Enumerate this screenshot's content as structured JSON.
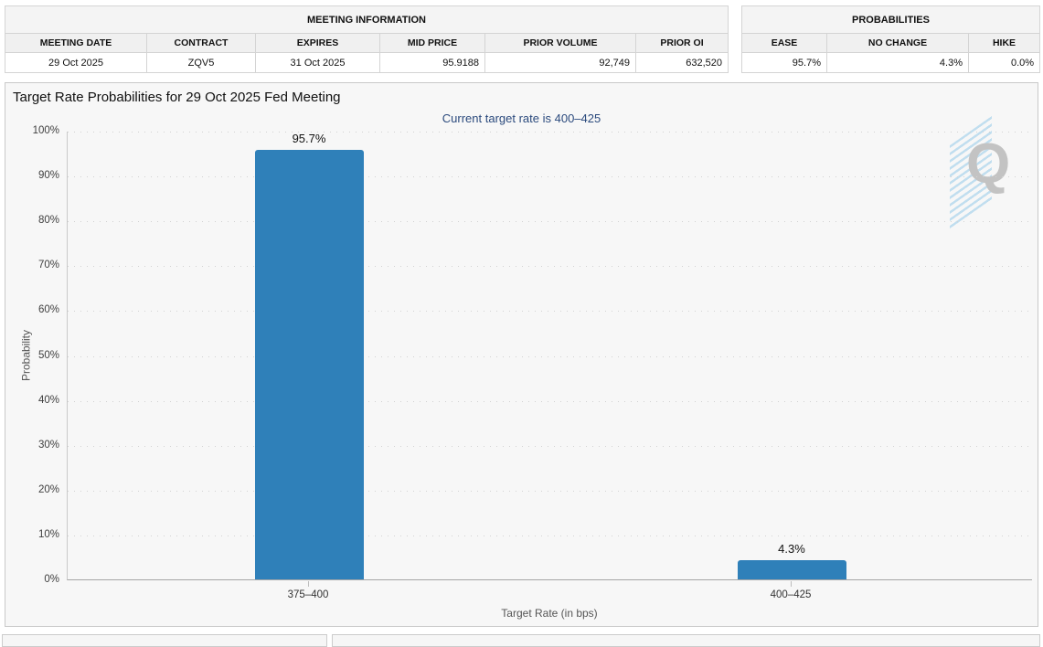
{
  "meeting_information": {
    "title": "MEETING INFORMATION",
    "columns": [
      "MEETING DATE",
      "CONTRACT",
      "EXPIRES",
      "MID PRICE",
      "PRIOR VOLUME",
      "PRIOR OI"
    ],
    "row": [
      "29 Oct 2025",
      "ZQV5",
      "31 Oct 2025",
      "95.9188",
      "92,749",
      "632,520"
    ]
  },
  "probabilities": {
    "title": "PROBABILITIES",
    "columns": [
      "EASE",
      "NO CHANGE",
      "HIKE"
    ],
    "row": [
      "95.7%",
      "4.3%",
      "0.0%"
    ]
  },
  "chart": {
    "title": "Target Rate Probabilities for 29 Oct 2025 Fed Meeting",
    "subtitle": "Current target rate is 400–425",
    "menu_icon": "hamburger-menu",
    "watermark": "Q"
  },
  "chart_data": {
    "type": "bar",
    "categories": [
      "375–400",
      "400–425"
    ],
    "values": [
      95.7,
      4.3
    ],
    "labels": [
      "95.7%",
      "4.3%"
    ],
    "title": "Target Rate Probabilities for 29 Oct 2025 Fed Meeting",
    "subtitle": "Current target rate is 400–425",
    "xlabel": "Target Rate (in bps)",
    "ylabel": "Probability",
    "ylim": [
      0,
      100
    ],
    "ytick_step": 10,
    "ytick_suffix": "%",
    "grid": "dotted horizontal",
    "legend": "none",
    "bar_color": "#2f80b9",
    "subtitle_color": "#2b4a7d"
  }
}
